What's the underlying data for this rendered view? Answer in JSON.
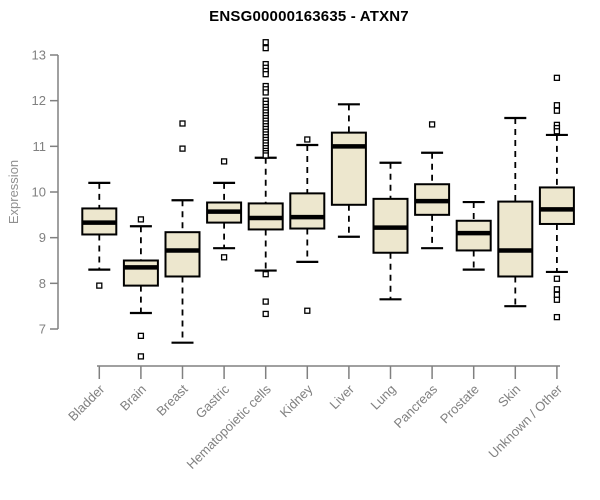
{
  "title": "ENSG00000163635 - ATXN7",
  "chart_data": {
    "type": "boxplot",
    "title": "ENSG00000163635 - ATXN7",
    "ylabel": "Expression",
    "ylim": [
      7,
      13
    ],
    "yticks": [
      13,
      12,
      11,
      10,
      9,
      8,
      7
    ],
    "grid": false,
    "legend": "none",
    "categories": [
      "Bladder",
      "Brain",
      "Breast",
      "Gastric",
      "Hematopoietic cells",
      "Kidney",
      "Liver",
      "Lung",
      "Pancreas",
      "Prostate",
      "Skin",
      "Unknown / Other"
    ],
    "series": [
      {
        "name": "Bladder",
        "whisker_low": 8.3,
        "q1": 9.07,
        "median": 9.33,
        "q3": 9.64,
        "whisker_high": 10.2,
        "outliers": [
          7.95
        ]
      },
      {
        "name": "Brain",
        "whisker_low": 7.35,
        "q1": 7.95,
        "median": 8.35,
        "q3": 8.5,
        "whisker_high": 9.25,
        "outliers": [
          9.4,
          6.85,
          6.4
        ]
      },
      {
        "name": "Breast",
        "whisker_low": 6.7,
        "q1": 8.15,
        "median": 8.72,
        "q3": 9.12,
        "whisker_high": 9.82,
        "outliers": [
          11.5,
          10.95
        ]
      },
      {
        "name": "Gastric",
        "whisker_low": 8.77,
        "q1": 9.33,
        "median": 9.57,
        "q3": 9.77,
        "whisker_high": 10.2,
        "outliers": [
          10.67,
          8.57
        ]
      },
      {
        "name": "Hematopoietic cells",
        "whisker_low": 8.28,
        "q1": 9.18,
        "median": 9.43,
        "q3": 9.75,
        "whisker_high": 10.75,
        "outliers": [
          13.28,
          13.15,
          12.8,
          12.72,
          12.65,
          12.58,
          12.32,
          12.25,
          12.18,
          12.0,
          11.93,
          11.86,
          11.8,
          11.74,
          11.68,
          11.62,
          11.56,
          11.5,
          11.44,
          11.38,
          11.32,
          11.26,
          11.2,
          11.14,
          11.08,
          11.02,
          10.96,
          10.9,
          10.85,
          10.8,
          8.2,
          7.6,
          7.33
        ]
      },
      {
        "name": "Kidney",
        "whisker_low": 8.47,
        "q1": 9.2,
        "median": 9.45,
        "q3": 9.97,
        "whisker_high": 11.03,
        "outliers": [
          11.15,
          7.4
        ]
      },
      {
        "name": "Liver",
        "whisker_low": 9.02,
        "q1": 9.72,
        "median": 11.0,
        "q3": 11.3,
        "whisker_high": 11.92,
        "outliers": []
      },
      {
        "name": "Lung",
        "whisker_low": 7.65,
        "q1": 8.67,
        "median": 9.22,
        "q3": 9.85,
        "whisker_high": 10.64,
        "outliers": []
      },
      {
        "name": "Pancreas",
        "whisker_low": 8.77,
        "q1": 9.5,
        "median": 9.8,
        "q3": 10.17,
        "whisker_high": 10.86,
        "outliers": [
          11.48
        ]
      },
      {
        "name": "Prostate",
        "whisker_low": 8.3,
        "q1": 8.72,
        "median": 9.1,
        "q3": 9.37,
        "whisker_high": 9.78,
        "outliers": []
      },
      {
        "name": "Skin",
        "whisker_low": 7.5,
        "q1": 8.15,
        "median": 8.72,
        "q3": 9.79,
        "whisker_high": 11.62,
        "outliers": []
      },
      {
        "name": "Unknown / Other",
        "whisker_low": 8.25,
        "q1": 9.3,
        "median": 9.62,
        "q3": 10.1,
        "whisker_high": 11.25,
        "outliers": [
          12.5,
          11.9,
          11.78,
          11.47,
          11.4,
          11.33,
          8.1,
          7.87,
          7.75,
          7.64,
          7.26
        ]
      }
    ],
    "colors": {
      "box_fill": "#EDE7CE",
      "box_border": "#000000",
      "median": "#000000",
      "whisker": "#000000",
      "outlier_fill": "#FFFFFF",
      "axis": "#808080",
      "tick_labels": "#808080",
      "title_color": "#000000",
      "background": "#FFFFFF"
    }
  }
}
